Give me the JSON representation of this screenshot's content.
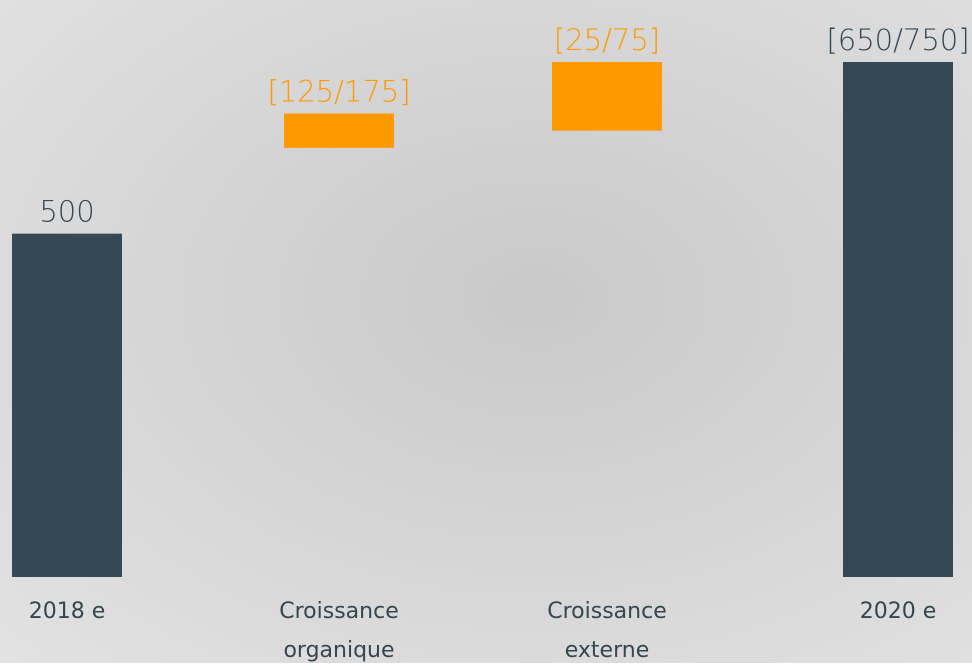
{
  "chart_data": {
    "type": "waterfall-range",
    "categories": [
      "2018 e",
      "Croissance organique",
      "Croissance externe",
      "2020 e"
    ],
    "low": [
      500,
      125,
      25,
      650
    ],
    "high": [
      null,
      175,
      75,
      750
    ],
    "value_labels": [
      "500",
      "[125/175]",
      "[25/75]",
      "[650/750]"
    ],
    "total_color": "#344955",
    "change_color": "#ff9900"
  }
}
